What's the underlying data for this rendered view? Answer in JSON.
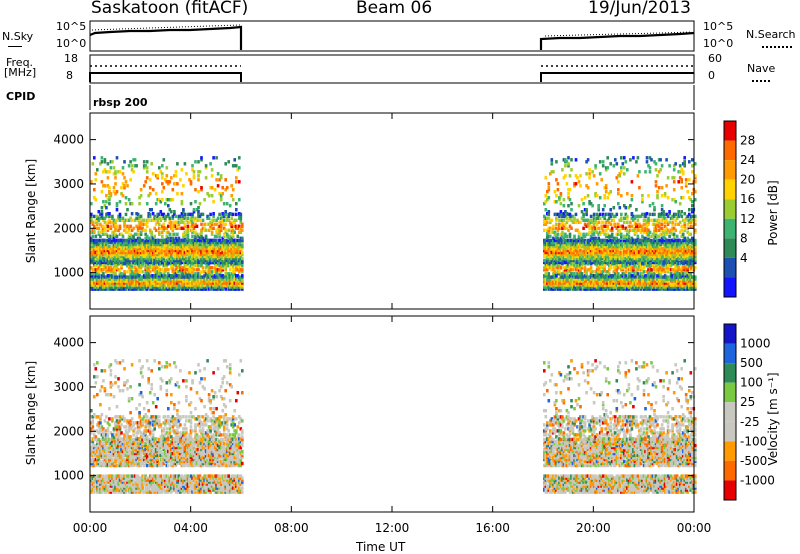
{
  "header": {
    "station": "Saskatoon (fitACF)",
    "beam": "Beam 06",
    "date": "19/Jun/2013"
  },
  "top_panels": {
    "nsky_label": "N.Sky",
    "nsky_ticks": [
      "10^5",
      "10^0"
    ],
    "nsearch_label": "N.Search",
    "nsearch_ticks": [
      "10^5",
      "10^0"
    ],
    "freq_label": "Freq.",
    "freq_unit": "[MHz]",
    "freq_ticks": [
      "18",
      "8"
    ],
    "nave_label": "Nave",
    "nave_ticks": [
      "60",
      "0"
    ],
    "cpid_label": "CPID",
    "cpid_value": "rbsp 200"
  },
  "chart_data": [
    {
      "type": "heatmap",
      "ylabel": "Slant Range [km]",
      "ylim": [
        180,
        4600
      ],
      "yticks": [
        "4000",
        "3000",
        "2000",
        "1000"
      ],
      "colorbar_label": "Power [dB]",
      "colorbar_ticks": [
        "28",
        "24",
        "20",
        "16",
        "12",
        "8",
        "4"
      ],
      "colorbar_colors": [
        "#e60000",
        "#ff6a00",
        "#ff9a00",
        "#ffd200",
        "#9acd32",
        "#3cb371",
        "#2e8b57",
        "#1e50b4",
        "#1414ff"
      ],
      "data_intervals_ut": [
        [
          "00:00",
          "06:00"
        ],
        [
          "18:00",
          "24:00"
        ]
      ]
    },
    {
      "type": "heatmap",
      "ylabel": "Slant Range [km]",
      "ylim": [
        180,
        4600
      ],
      "yticks": [
        "4000",
        "3000",
        "2000",
        "1000"
      ],
      "colorbar_label": "Velocity [m s⁻¹]",
      "colorbar_ticks": [
        "1000",
        "500",
        "100",
        "25",
        "-25",
        "-100",
        "-500",
        "-1000"
      ],
      "colorbar_colors": [
        "#1414c8",
        "#1e64dc",
        "#2e8b57",
        "#7ac943",
        "#c8c8c0",
        "#c8c8c0",
        "#ff9a00",
        "#ff6a00",
        "#e60000"
      ],
      "data_intervals_ut": [
        [
          "00:00",
          "06:00"
        ],
        [
          "18:00",
          "24:00"
        ]
      ]
    }
  ],
  "time_axis": {
    "label": "Time UT",
    "ticks": [
      "00:00",
      "04:00",
      "08:00",
      "12:00",
      "16:00",
      "20:00",
      "00:00"
    ]
  }
}
